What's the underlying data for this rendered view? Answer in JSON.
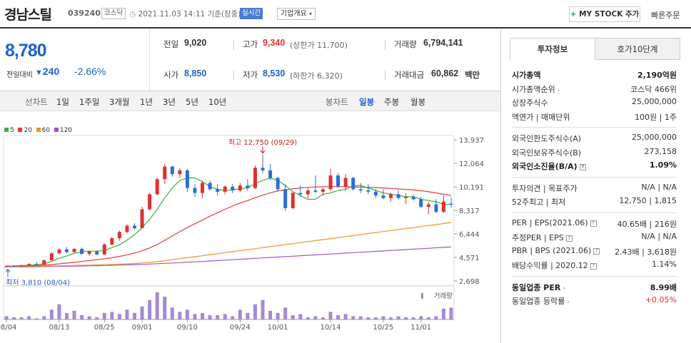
{
  "header": {
    "stock_name": "경남스틸",
    "stock_code": "039240",
    "market": "코스닥",
    "datetime": "2021.11.03 14:11  기준(장중)",
    "realtime": "실시간",
    "company_overview": "기업개요",
    "my_stock": "MY STOCK 추가",
    "quick_order": "빠른주문"
  },
  "price": {
    "current": "8,780",
    "change_label": "전일대비",
    "change": "240",
    "change_pct": "-2.66%"
  },
  "details": {
    "prev_close_label": "전일",
    "prev_close": "9,020",
    "high_label": "고가",
    "high": "9,340",
    "upper_limit": "(상한가 11,700)",
    "volume_label": "거래량",
    "volume": "6,794,141",
    "open_label": "시가",
    "open": "8,850",
    "low_label": "저가",
    "low": "8,530",
    "lower_limit": "(하한가 6,320)",
    "trade_value_label": "거래대금",
    "trade_value": "60,862",
    "trade_value_unit": "백만"
  },
  "periods": {
    "line_chart": "선차트",
    "line_items": [
      "1일",
      "1주일",
      "3개월",
      "1년",
      "3년",
      "5년",
      "10년"
    ],
    "candle_chart": "봉차트",
    "candle_items": [
      "일봉",
      "주봉",
      "월봉"
    ],
    "active_candle": "일봉"
  },
  "legend": [
    {
      "label": "5",
      "color": "#3fae3a"
    },
    {
      "label": "20",
      "color": "#e23b3b"
    },
    {
      "label": "60",
      "color": "#f0932a"
    },
    {
      "label": "120",
      "color": "#9b59c9"
    }
  ],
  "chart_data": {
    "type": "candlestick",
    "yticks": [
      "13,937",
      "12,064",
      "10,191",
      "8,317",
      "6,444",
      "4,571",
      "2,698"
    ],
    "ytick_values": [
      13937,
      12064,
      10191,
      8317,
      6444,
      4571,
      2698
    ],
    "ylim": [
      2698,
      13937
    ],
    "xticks": [
      "08/04",
      "08/13",
      "08/25",
      "09/01",
      "09/10",
      "09/24",
      "10/01",
      "10/14",
      "10/25",
      "11/01"
    ],
    "xtick_index": [
      0,
      7,
      13,
      18,
      24,
      31,
      36,
      43,
      50,
      55
    ],
    "max_label": "최고 12,750 (09/29)",
    "min_label": "최저 3,810 (08/04)",
    "volume_label": "거래량",
    "candles": [
      [
        3810,
        3950,
        3800,
        3900
      ],
      [
        3900,
        3960,
        3850,
        3880
      ],
      [
        3880,
        4000,
        3860,
        3950
      ],
      [
        3950,
        4100,
        3900,
        4050
      ],
      [
        4050,
        4200,
        3950,
        4000
      ],
      [
        4000,
        4400,
        3980,
        4350
      ],
      [
        4350,
        5000,
        4300,
        4900
      ],
      [
        4900,
        5300,
        4800,
        5200
      ],
      [
        5200,
        5400,
        4900,
        5000
      ],
      [
        5000,
        5300,
        4950,
        5250
      ],
      [
        5250,
        5350,
        4800,
        4850
      ],
      [
        4850,
        5100,
        4700,
        5050
      ],
      [
        5050,
        5100,
        4750,
        4800
      ],
      [
        4800,
        5700,
        4800,
        5600
      ],
      [
        5600,
        6200,
        5500,
        6100
      ],
      [
        6100,
        6700,
        5900,
        6600
      ],
      [
        6600,
        7200,
        6500,
        7100
      ],
      [
        7100,
        7300,
        6800,
        6900
      ],
      [
        6900,
        8600,
        6900,
        8400
      ],
      [
        8400,
        9700,
        8300,
        9600
      ],
      [
        9600,
        10900,
        9500,
        10800
      ],
      [
        10800,
        12000,
        10400,
        11800
      ],
      [
        11800,
        11900,
        11000,
        11200
      ],
      [
        11200,
        11700,
        10900,
        11500
      ],
      [
        11500,
        11600,
        9800,
        10100
      ],
      [
        10100,
        10400,
        9400,
        9700
      ],
      [
        9700,
        10700,
        9300,
        10500
      ],
      [
        10500,
        10700,
        9900,
        10000
      ],
      [
        10000,
        10400,
        9500,
        9800
      ],
      [
        9800,
        10300,
        9600,
        10200
      ],
      [
        10200,
        10400,
        9700,
        9900
      ],
      [
        9900,
        10500,
        9800,
        10300
      ],
      [
        10300,
        10800,
        9900,
        10100
      ],
      [
        10100,
        11900,
        10000,
        11700
      ],
      [
        11700,
        12750,
        11300,
        11500
      ],
      [
        11500,
        12000,
        10700,
        10900
      ],
      [
        10900,
        11000,
        9800,
        10000
      ],
      [
        10000,
        10400,
        8300,
        8500
      ],
      [
        8500,
        9800,
        8400,
        9700
      ],
      [
        9700,
        10300,
        9400,
        9600
      ],
      [
        9600,
        10100,
        9300,
        9900
      ],
      [
        9900,
        11100,
        9700,
        9800
      ],
      [
        9800,
        10100,
        9500,
        10000
      ],
      [
        10000,
        11600,
        9900,
        11100
      ],
      [
        11100,
        11300,
        10100,
        10200
      ],
      [
        10200,
        11200,
        9900,
        10900
      ],
      [
        10900,
        11000,
        9900,
        10000
      ],
      [
        10000,
        10500,
        9700,
        9900
      ],
      [
        9900,
        10400,
        9600,
        9800
      ],
      [
        9800,
        10000,
        9300,
        9500
      ],
      [
        9500,
        10000,
        9200,
        9300
      ],
      [
        9300,
        9700,
        9000,
        9600
      ],
      [
        9600,
        9900,
        9200,
        9300
      ],
      [
        9300,
        9700,
        8800,
        9400
      ],
      [
        9400,
        9600,
        9100,
        9200
      ],
      [
        9200,
        9400,
        8500,
        8600
      ],
      [
        8600,
        9000,
        8000,
        8800
      ],
      [
        8800,
        9200,
        8100,
        8200
      ],
      [
        8200,
        9500,
        8100,
        9020
      ],
      [
        8850,
        9340,
        8530,
        8780
      ]
    ],
    "ma5": [
      3880,
      3900,
      3920,
      3950,
      3980,
      4060,
      4260,
      4500,
      4690,
      4900,
      5030,
      5070,
      5070,
      5110,
      5360,
      5570,
      5950,
      6370,
      6940,
      7600,
      8400,
      9300,
      10100,
      10700,
      10900,
      10900,
      10600,
      10200,
      10000,
      9900,
      9950,
      10050,
      10100,
      10450,
      10700,
      10900,
      10700,
      10300,
      9800,
      9500,
      9200,
      9200,
      9600,
      9700,
      9900,
      10000,
      10300,
      10300,
      10100,
      9900,
      9700,
      9600,
      9500,
      9400,
      9400,
      9200,
      9100,
      9000,
      8800,
      8800
    ],
    "ma20": [
      3870,
      3880,
      3890,
      3900,
      3920,
      3950,
      4000,
      4060,
      4120,
      4180,
      4250,
      4320,
      4390,
      4460,
      4550,
      4650,
      4780,
      4920,
      5100,
      5320,
      5600,
      5930,
      6280,
      6620,
      6950,
      7250,
      7550,
      7850,
      8130,
      8400,
      8660,
      8900,
      9100,
      9320,
      9520,
      9700,
      9870,
      9960,
      10040,
      10100,
      10150,
      10180,
      10200,
      10210,
      10200,
      10200,
      10190,
      10170,
      10150,
      10130,
      10100,
      10060,
      10020,
      9980,
      9940,
      9880,
      9800,
      9700,
      9600,
      9500
    ],
    "ma60": [
      3850,
      3855,
      3860,
      3865,
      3870,
      3880,
      3890,
      3900,
      3915,
      3930,
      3945,
      3960,
      3975,
      3990,
      4010,
      4030,
      4060,
      4090,
      4130,
      4180,
      4240,
      4310,
      4390,
      4470,
      4550,
      4630,
      4710,
      4790,
      4870,
      4950,
      5030,
      5110,
      5190,
      5270,
      5350,
      5430,
      5510,
      5590,
      5670,
      5750,
      5830,
      5910,
      5990,
      6070,
      6150,
      6230,
      6310,
      6390,
      6470,
      6550,
      6630,
      6710,
      6790,
      6870,
      6950,
      7030,
      7110,
      7190,
      7270,
      7350
    ],
    "ma120": [
      3820,
      3825,
      3830,
      3835,
      3840,
      3845,
      3850,
      3860,
      3870,
      3880,
      3890,
      3900,
      3915,
      3930,
      3945,
      3960,
      3980,
      4000,
      4020,
      4045,
      4070,
      4100,
      4130,
      4160,
      4190,
      4220,
      4250,
      4285,
      4320,
      4355,
      4390,
      4425,
      4460,
      4495,
      4530,
      4565,
      4600,
      4635,
      4670,
      4705,
      4740,
      4775,
      4810,
      4845,
      4880,
      4915,
      4950,
      4985,
      5020,
      5055,
      5090,
      5125,
      5160,
      5195,
      5230,
      5265,
      5300,
      5335,
      5370,
      5400
    ],
    "volume": [
      3,
      2,
      2,
      3,
      1,
      3,
      9,
      14,
      6,
      8,
      4,
      3,
      2,
      6,
      7,
      5,
      9,
      6,
      12,
      18,
      25,
      21,
      11,
      7,
      9,
      5,
      6,
      4,
      4,
      5,
      3,
      9,
      6,
      14,
      18,
      8,
      6,
      11,
      4,
      5,
      2,
      3,
      2,
      7,
      4,
      5,
      3,
      3,
      2,
      2,
      3,
      2,
      3,
      2,
      2,
      3,
      2,
      3,
      10,
      11
    ]
  },
  "side": {
    "tab_invest": "투자정보",
    "tab_hoga": "호가10단계",
    "rows1": [
      {
        "l": "시가총액",
        "r": "2,190억원",
        "bold": true
      },
      {
        "l": "시가총액순위",
        "r": "코스닥 466위",
        "chev": true
      },
      {
        "l": "상장주식수",
        "r": "25,000,000"
      },
      {
        "l": "액면가 | 매매단위",
        "r": "100원 | 1주"
      }
    ],
    "rows2": [
      {
        "l": "외국인한도주식수(A)",
        "r": "25,000,000"
      },
      {
        "l": "외국인보유주식수(B)",
        "r": "273,158"
      },
      {
        "l": "외국인소진율(B/A)",
        "r": "1.09%",
        "bold": true,
        "q": true
      }
    ],
    "rows3": [
      {
        "l": "투자의견 | 목표주가",
        "r": "N/A | N/A"
      },
      {
        "l": "52주최고 | 최저",
        "r": "12,750 | 1,815"
      }
    ],
    "rows4": [
      {
        "l": "PER | EPS(2021.06)",
        "r": "40.65배 | 216원",
        "q": true
      },
      {
        "l": "추정PER | EPS",
        "r": "N/A | N/A",
        "q": true
      },
      {
        "l": "PBR | BPS (2021.06)",
        "r": "2.43배 | 3,618원",
        "q": true
      },
      {
        "l": "배당수익률 | 2020.12",
        "r": "1.14%",
        "q": true
      }
    ],
    "rows5": [
      {
        "l": "동일업종 PER",
        "r": "8.99배",
        "bold": true,
        "chev": true
      },
      {
        "l": "동일업종 등락률",
        "r": "+0.05%",
        "chev": true,
        "red": true
      }
    ]
  }
}
